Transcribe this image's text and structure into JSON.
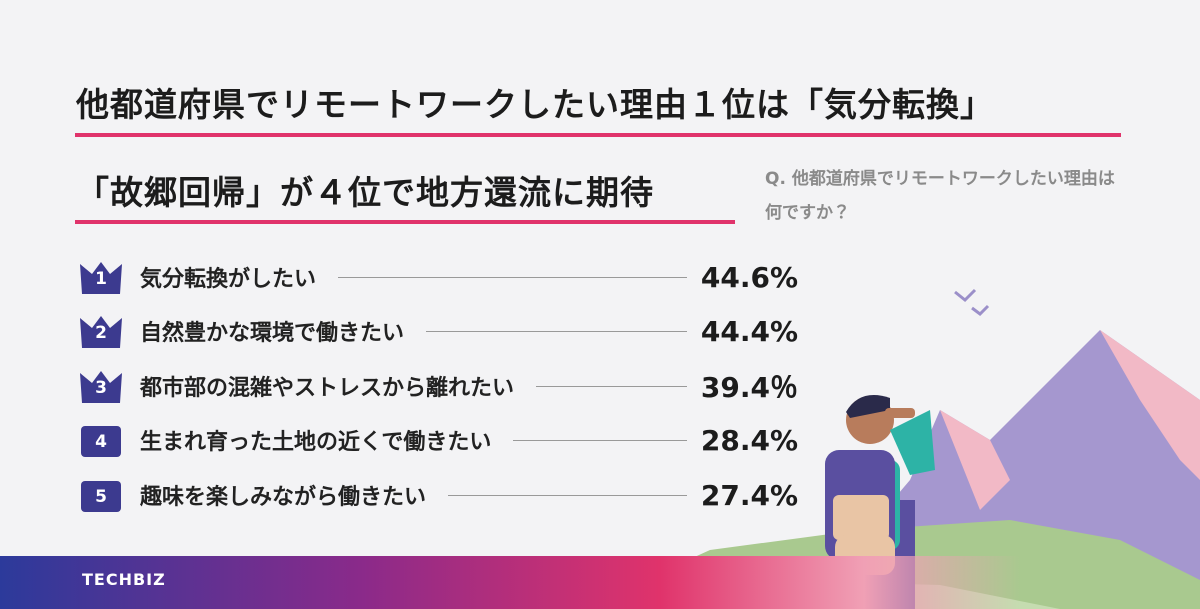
{
  "header": {
    "title_line1": "他都道府県でリモートワークしたい理由１位は「気分転換」",
    "title_line2": "「故郷回帰」が４位で地方還流に期待",
    "question": "Q. 他都道府県でリモートワークしたい理由は何ですか？"
  },
  "ranking": [
    {
      "rank": "1",
      "label": "気分転換がしたい",
      "value": "44.6%"
    },
    {
      "rank": "2",
      "label": "自然豊かな環境で働きたい",
      "value": "44.4%"
    },
    {
      "rank": "3",
      "label": "都市部の混雑やストレスから離れたい",
      "value": "39.4％"
    },
    {
      "rank": "4",
      "label": "生まれ育った土地の近くで働きたい",
      "value": "28.4%"
    },
    {
      "rank": "5",
      "label": "趣味を楽しみながら働きたい",
      "value": "27.4%"
    }
  ],
  "footer": {
    "brand": "TECHBIZ"
  }
}
